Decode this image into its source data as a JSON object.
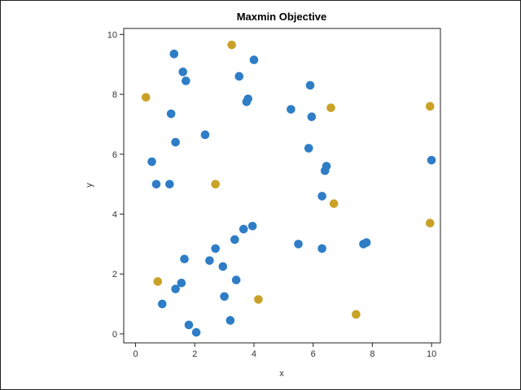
{
  "chart_data": {
    "type": "scatter",
    "title": "Maxmin Objective",
    "xlabel": "x",
    "ylabel": "y",
    "xlim": [
      -0.4,
      10.3
    ],
    "ylim": [
      -0.3,
      10.2
    ],
    "xticks": [
      0,
      2,
      4,
      6,
      8,
      10
    ],
    "yticks": [
      0,
      2,
      4,
      6,
      8,
      10
    ],
    "grid": false,
    "series": [
      {
        "color": "#2e7dc6",
        "points": [
          [
            1.3,
            9.35
          ],
          [
            1.6,
            8.75
          ],
          [
            1.7,
            8.45
          ],
          [
            4.0,
            9.15
          ],
          [
            3.5,
            8.6
          ],
          [
            3.75,
            7.75
          ],
          [
            3.8,
            7.85
          ],
          [
            1.2,
            7.35
          ],
          [
            2.35,
            6.65
          ],
          [
            1.35,
            6.4
          ],
          [
            0.55,
            5.75
          ],
          [
            0.7,
            5.0
          ],
          [
            1.15,
            5.0
          ],
          [
            5.25,
            7.5
          ],
          [
            5.9,
            8.3
          ],
          [
            5.95,
            7.25
          ],
          [
            5.85,
            6.2
          ],
          [
            6.45,
            5.6
          ],
          [
            6.4,
            5.45
          ],
          [
            6.3,
            4.6
          ],
          [
            10.0,
            5.8
          ],
          [
            3.95,
            3.6
          ],
          [
            3.65,
            3.5
          ],
          [
            3.35,
            3.15
          ],
          [
            2.7,
            2.85
          ],
          [
            2.5,
            2.45
          ],
          [
            1.65,
            2.5
          ],
          [
            2.95,
            2.25
          ],
          [
            3.4,
            1.8
          ],
          [
            1.55,
            1.7
          ],
          [
            1.35,
            1.5
          ],
          [
            0.9,
            1.0
          ],
          [
            3.0,
            1.25
          ],
          [
            1.8,
            0.3
          ],
          [
            2.05,
            0.05
          ],
          [
            3.2,
            0.45
          ],
          [
            5.5,
            3.0
          ],
          [
            6.3,
            2.85
          ],
          [
            7.7,
            3.0
          ],
          [
            7.8,
            3.05
          ]
        ]
      },
      {
        "color": "#c9a227",
        "points": [
          [
            3.25,
            9.65
          ],
          [
            0.35,
            7.9
          ],
          [
            6.6,
            7.55
          ],
          [
            9.95,
            7.6
          ],
          [
            2.7,
            5.0
          ],
          [
            6.7,
            4.35
          ],
          [
            9.95,
            3.7
          ],
          [
            0.75,
            1.75
          ],
          [
            4.15,
            1.15
          ],
          [
            7.45,
            0.65
          ]
        ]
      }
    ]
  }
}
